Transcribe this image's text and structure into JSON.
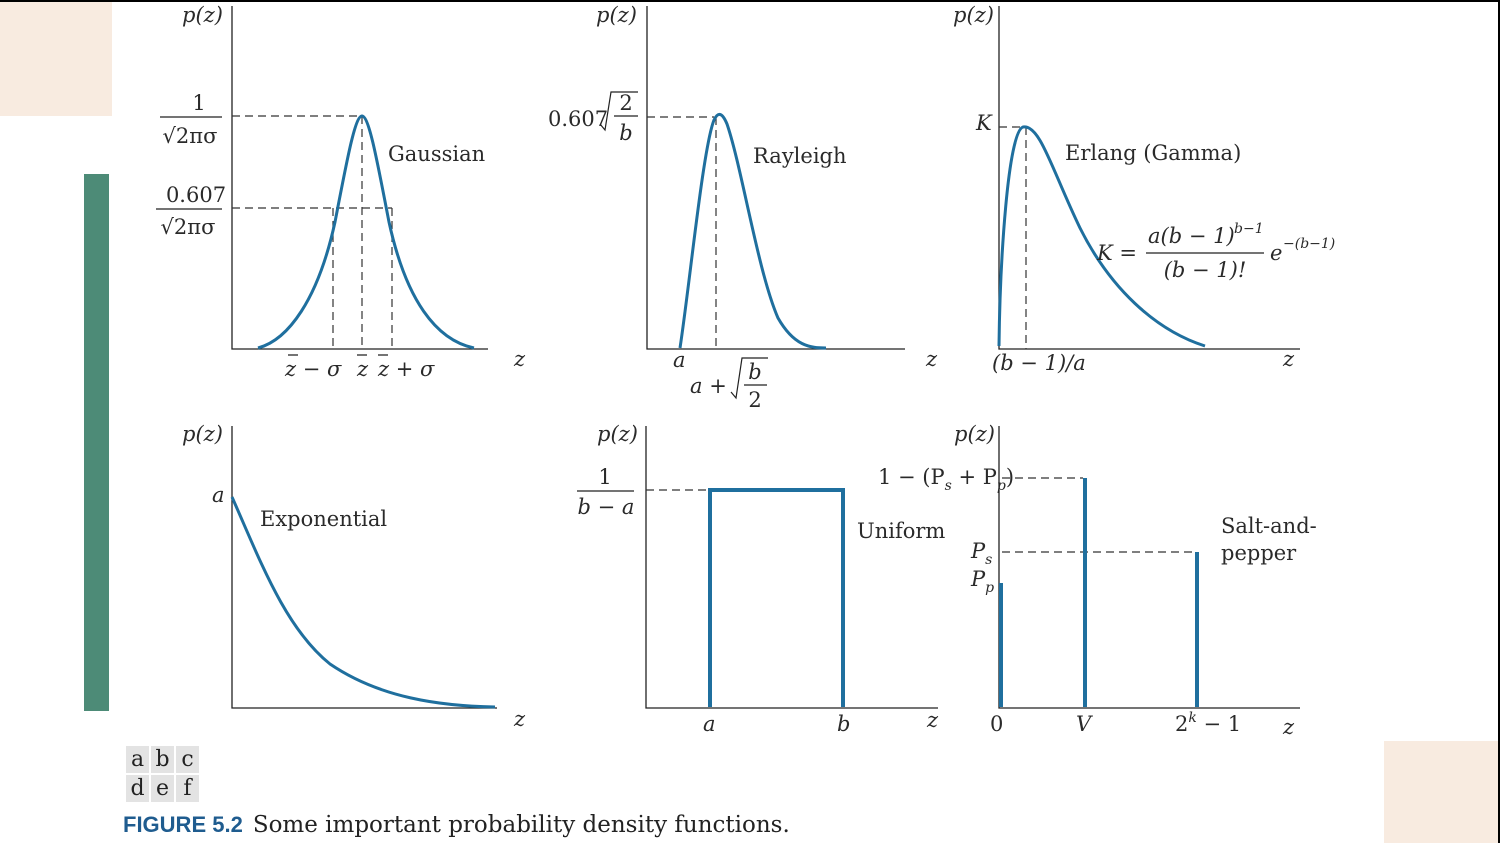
{
  "caption": {
    "label": "FIGURE 5.2",
    "text": "Some important probability density functions."
  },
  "panels": [
    [
      "a",
      "b",
      "c"
    ],
    [
      "d",
      "e",
      "f"
    ]
  ],
  "gaussian": {
    "ylabel": "p(z)",
    "xlabel": "z",
    "name": "Gaussian",
    "peak_num": "1",
    "peak_den": "√2πσ",
    "mid_num": "0.607",
    "mid_den": "√2πσ",
    "ticks": [
      "z − σ",
      "z",
      "z + σ"
    ]
  },
  "rayleigh": {
    "ylabel": "p(z)",
    "xlabel": "z",
    "name": "Rayleigh",
    "peak_coef": "0.607",
    "peak_num": "2",
    "peak_den": "b",
    "tick_a": "a",
    "tick_peak_prefix": "a +",
    "tick_peak_num": "b",
    "tick_peak_den": "2"
  },
  "erlang": {
    "ylabel": "p(z)",
    "xlabel": "z",
    "name": "Erlang (Gamma)",
    "peak": "K",
    "tick_peak": "(b − 1)/a",
    "formula_lhs": "K =",
    "formula_num": "a(b − 1)",
    "formula_num_exp": "b−1",
    "formula_den": "(b − 1)!",
    "formula_e": "e",
    "formula_e_exp": "−(b−1)"
  },
  "exponential": {
    "ylabel": "p(z)",
    "xlabel": "z",
    "name": "Exponential",
    "start": "a"
  },
  "uniform": {
    "ylabel": "p(z)",
    "xlabel": "z",
    "name": "Uniform",
    "height_num": "1",
    "height_den": "b − a",
    "tick_a": "a",
    "tick_b": "b"
  },
  "saltpepper": {
    "ylabel": "p(z)",
    "xlabel": "z",
    "name_line1": "Salt-and-",
    "name_line2": "pepper",
    "top": "1 − (P",
    "top_s": "s",
    "top_plus": " + P",
    "top_p": "p",
    "top_close": ")",
    "ps": "P",
    "ps_sub": "s",
    "pp": "P",
    "pp_sub": "p",
    "tick_0": "0",
    "tick_v": "V",
    "tick_max": "2",
    "tick_max_exp": "k",
    "tick_max_tail": " − 1"
  },
  "colors": {
    "curve": "#1f6f9e",
    "accent_bar": "#4d8b77",
    "deco_box": "#f8ebe0",
    "caption_label": "#1f5c8f"
  }
}
